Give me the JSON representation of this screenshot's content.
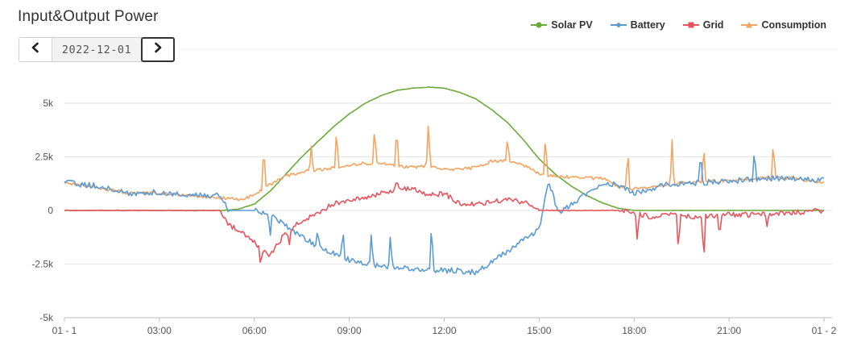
{
  "header": {
    "title": "Input&Output Power"
  },
  "date_nav": {
    "date": "2022-12-01",
    "prev_icon": "chevron-left-icon",
    "next_icon": "chevron-right-icon"
  },
  "colors": {
    "solar": "#6aaa3a",
    "battery": "#5b9bd5",
    "grid": "#e8555c",
    "consumption": "#f4a460",
    "gridline": "#e6e6e6",
    "axis": "#bdbdbd"
  },
  "chart_data": {
    "type": "line",
    "title": "",
    "xlabel": "",
    "ylabel": "",
    "legend_position": "top-right",
    "grid": true,
    "x_range": [
      0,
      24
    ],
    "ylim": [
      -5000,
      5000
    ],
    "yticks": [
      {
        "value": 5000,
        "label": "5k"
      },
      {
        "value": 2500,
        "label": "2.5k"
      },
      {
        "value": 0,
        "label": "0"
      },
      {
        "value": -2500,
        "label": "-2.5k"
      },
      {
        "value": -5000,
        "label": "-5k"
      }
    ],
    "xticks": [
      {
        "value": 0,
        "label": "01 - 1"
      },
      {
        "value": 3,
        "label": "03:00"
      },
      {
        "value": 6,
        "label": "06:00"
      },
      {
        "value": 9,
        "label": "09:00"
      },
      {
        "value": 12,
        "label": "12:00"
      },
      {
        "value": 15,
        "label": "15:00"
      },
      {
        "value": 18,
        "label": "18:00"
      },
      {
        "value": 21,
        "label": "21:00"
      },
      {
        "value": 24,
        "label": "01 - 2"
      }
    ],
    "x_unit": "hour",
    "series": [
      {
        "name": "Solar PV",
        "color": "#6aaa3a",
        "x": [
          0,
          5.0,
          5.5,
          6.0,
          6.5,
          7.0,
          7.5,
          8.0,
          8.5,
          9.0,
          9.5,
          10.0,
          10.5,
          11.0,
          11.5,
          12.0,
          12.5,
          13.0,
          13.5,
          14.0,
          14.5,
          15.0,
          15.5,
          16.0,
          16.5,
          17.0,
          17.5,
          18.0,
          24
        ],
        "y": [
          0,
          0,
          60,
          300,
          900,
          1700,
          2500,
          3200,
          3900,
          4500,
          5000,
          5350,
          5600,
          5700,
          5750,
          5700,
          5500,
          5200,
          4700,
          4100,
          3300,
          2400,
          1700,
          1150,
          700,
          350,
          100,
          0,
          0
        ]
      },
      {
        "name": "Battery",
        "color": "#5b9bd5",
        "x": [
          0,
          1,
          2,
          3,
          4,
          4.9,
          5.2,
          5.5,
          6.0,
          6.5,
          7.0,
          7.5,
          8.0,
          8.5,
          9.0,
          9.5,
          10.0,
          10.5,
          11.0,
          11.5,
          12.0,
          12.5,
          13.0,
          13.5,
          14.0,
          14.5,
          15.0,
          15.3,
          15.6,
          16.0,
          16.5,
          17.0,
          17.5,
          18.0,
          19.0,
          20.0,
          21.0,
          22.0,
          23.0,
          24
        ],
        "y": [
          1300,
          1150,
          800,
          850,
          700,
          700,
          0,
          0,
          0,
          -150,
          -700,
          -1200,
          -1700,
          -2000,
          -2300,
          -2500,
          -2600,
          -2650,
          -2750,
          -2750,
          -2800,
          -2800,
          -2900,
          -2400,
          -1900,
          -1400,
          -900,
          1400,
          -100,
          250,
          800,
          1300,
          1200,
          800,
          1200,
          1300,
          1350,
          1500,
          1500,
          1400
        ],
        "spikes": [
          {
            "x": 6.5,
            "y": -1300
          },
          {
            "x": 8.0,
            "y": -850
          },
          {
            "x": 8.8,
            "y": -800
          },
          {
            "x": 9.7,
            "y": -950
          },
          {
            "x": 10.3,
            "y": -1050
          },
          {
            "x": 11.6,
            "y": -500
          },
          {
            "x": 20.1,
            "y": 2800
          },
          {
            "x": 21.8,
            "y": 2900
          }
        ]
      },
      {
        "name": "Grid",
        "color": "#e8555c",
        "x": [
          0,
          4.9,
          5.2,
          5.5,
          6.0,
          6.5,
          7.0,
          7.5,
          8.0,
          8.5,
          9.0,
          9.5,
          10.0,
          10.5,
          11.0,
          11.5,
          12.0,
          12.5,
          13.0,
          13.5,
          14.0,
          14.5,
          15.0,
          15.5,
          17.5,
          18.0,
          18.5,
          19.0,
          20.0,
          21.0,
          22.0,
          23.0,
          24
        ],
        "y": [
          0,
          0,
          -700,
          -900,
          -1500,
          -2100,
          -1000,
          -500,
          -100,
          300,
          500,
          600,
          800,
          1000,
          1000,
          700,
          800,
          300,
          300,
          400,
          500,
          400,
          0,
          0,
          0,
          -100,
          -300,
          -200,
          -300,
          -200,
          -200,
          -100,
          0
        ],
        "spikes": [
          {
            "x": 6.2,
            "y": -2650
          },
          {
            "x": 7.1,
            "y": -1700
          },
          {
            "x": 10.5,
            "y": 1450
          },
          {
            "x": 18.1,
            "y": -1500
          },
          {
            "x": 19.4,
            "y": -2000
          },
          {
            "x": 20.2,
            "y": -2500
          },
          {
            "x": 20.7,
            "y": -1300
          },
          {
            "x": 22.2,
            "y": -750
          }
        ]
      },
      {
        "name": "Consumption",
        "color": "#f4a460",
        "x": [
          0,
          1,
          2,
          3,
          4,
          4.9,
          5.5,
          6.0,
          6.5,
          7.0,
          7.5,
          8.0,
          8.5,
          9.0,
          9.5,
          10.0,
          10.5,
          11.0,
          11.5,
          12.0,
          12.5,
          13.0,
          13.5,
          14.0,
          14.5,
          15.0,
          15.5,
          16.0,
          16.5,
          17.0,
          17.5,
          18.0,
          19.0,
          20.0,
          21.0,
          22.0,
          23.0,
          24
        ],
        "y": [
          1300,
          1100,
          800,
          800,
          700,
          600,
          500,
          700,
          1200,
          1600,
          1800,
          1900,
          2000,
          2100,
          2200,
          2200,
          2100,
          2000,
          2100,
          1900,
          1900,
          2000,
          2300,
          2300,
          2100,
          1700,
          1600,
          1550,
          1500,
          1500,
          1100,
          1000,
          1200,
          1350,
          1400,
          1500,
          1500,
          1300
        ],
        "spikes": [
          {
            "x": 6.3,
            "y": 3200
          },
          {
            "x": 7.8,
            "y": 3000
          },
          {
            "x": 8.6,
            "y": 3900
          },
          {
            "x": 9.8,
            "y": 4000
          },
          {
            "x": 10.5,
            "y": 4000
          },
          {
            "x": 11.5,
            "y": 4200
          },
          {
            "x": 14.0,
            "y": 3500
          },
          {
            "x": 15.2,
            "y": 3600
          },
          {
            "x": 17.8,
            "y": 2900
          },
          {
            "x": 19.2,
            "y": 3300
          },
          {
            "x": 20.2,
            "y": 3100
          },
          {
            "x": 22.4,
            "y": 3300
          }
        ]
      }
    ]
  }
}
